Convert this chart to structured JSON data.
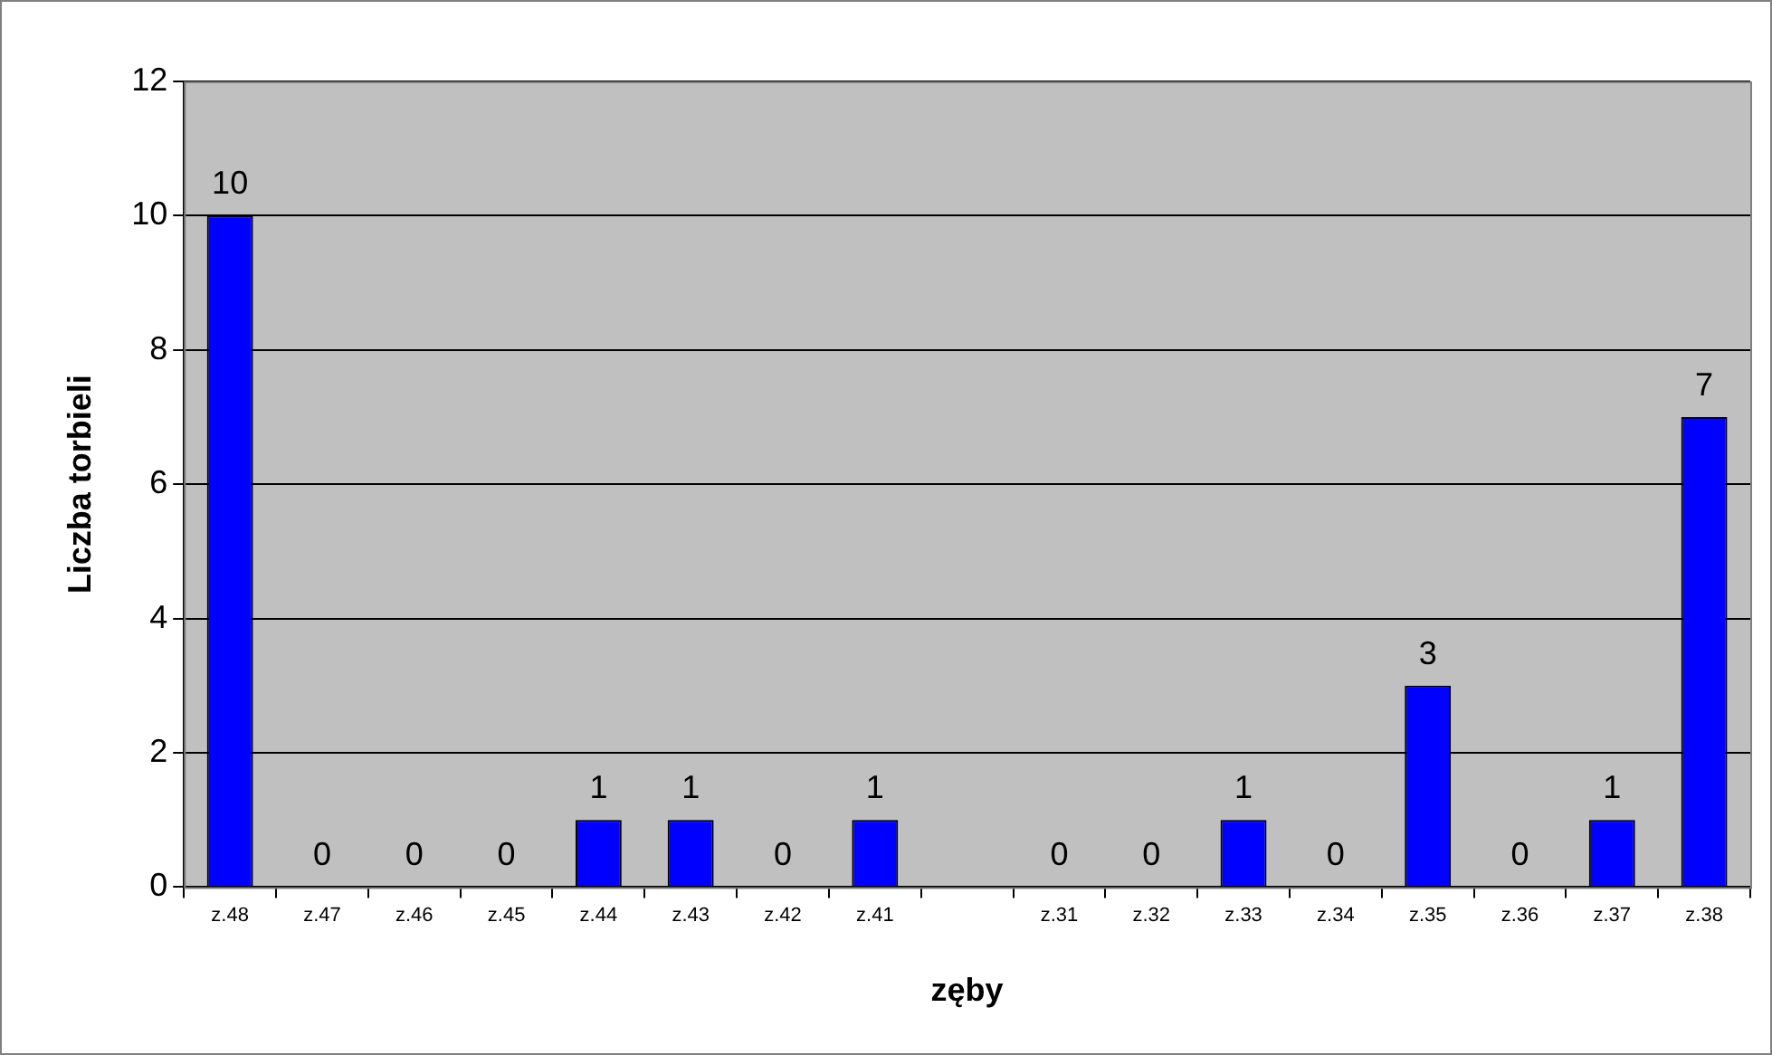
{
  "chart_data": {
    "type": "bar",
    "xlabel": "zęby",
    "ylabel": "Liczba torbieli",
    "categories": [
      "z.48",
      "z.47",
      "z.46",
      "z.45",
      "z.44",
      "z.43",
      "z.42",
      "z.41",
      null,
      "z.31",
      "z.32",
      "z.33",
      "z.34",
      "z.35",
      "z.36",
      "z.37",
      "z.38"
    ],
    "values": [
      10,
      0,
      0,
      0,
      1,
      1,
      0,
      1,
      null,
      0,
      0,
      1,
      0,
      3,
      0,
      1,
      7
    ],
    "color": "#0000ff",
    "ylim": [
      0,
      12
    ],
    "yticks": [
      0,
      2,
      4,
      6,
      8,
      10,
      12
    ],
    "grid": "y",
    "data_labels": true
  }
}
